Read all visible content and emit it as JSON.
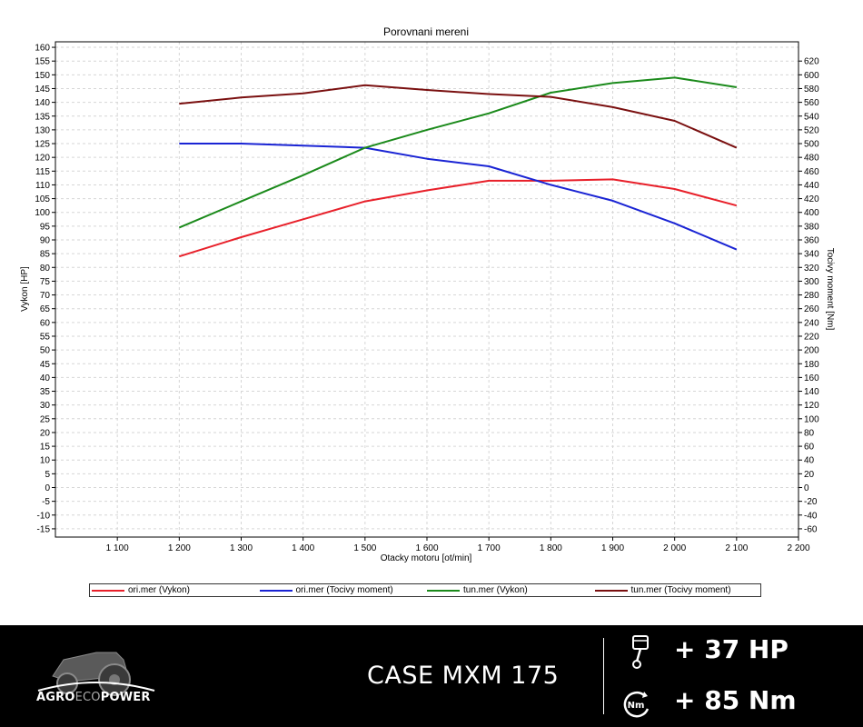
{
  "chart_data": {
    "type": "line",
    "title": "Porovnani mereni",
    "xlabel": "Otacky motoru [ot/min]",
    "ylabel_left": "Vykon [HP]",
    "ylabel_right": "Tocivy moment [Nm]",
    "xlim": [
      1000,
      2200
    ],
    "ylim_left": [
      -18,
      162
    ],
    "ylim_right": [
      -72,
      648
    ],
    "x_ticks": [
      1100,
      1200,
      1300,
      1400,
      1500,
      1600,
      1700,
      1800,
      1900,
      2000,
      2100,
      2200
    ],
    "x_tick_labels": [
      "1 100",
      "1 200",
      "1 300",
      "1 400",
      "1 500",
      "1 600",
      "1 700",
      "1 800",
      "1 900",
      "2 000",
      "2 100",
      "2 200"
    ],
    "y_ticks_left": [
      -15,
      -10,
      -5,
      0,
      5,
      10,
      15,
      20,
      25,
      30,
      35,
      40,
      45,
      50,
      55,
      60,
      65,
      70,
      75,
      80,
      85,
      90,
      95,
      100,
      105,
      110,
      115,
      120,
      125,
      130,
      135,
      140,
      145,
      150,
      155,
      160
    ],
    "y_ticks_right": [
      -60,
      -40,
      -20,
      0,
      20,
      40,
      60,
      80,
      100,
      120,
      140,
      160,
      180,
      200,
      220,
      240,
      260,
      280,
      300,
      320,
      340,
      360,
      380,
      400,
      420,
      440,
      460,
      480,
      500,
      520,
      540,
      560,
      580,
      600,
      620
    ],
    "grid": true,
    "legend_position": "bottom",
    "series": [
      {
        "name": "ori.mer  (Vykon)",
        "axis": "left",
        "color": "#e8202a",
        "x": [
          1200,
          1300,
          1400,
          1500,
          1600,
          1700,
          1800,
          1900,
          2000,
          2100
        ],
        "values": [
          84,
          91,
          97.5,
          104,
          108,
          111.5,
          111.5,
          112,
          108.5,
          102.5
        ]
      },
      {
        "name": "ori.mer  (Tocivy moment)",
        "axis": "right",
        "color": "#1a24d4",
        "x": [
          1200,
          1300,
          1400,
          1500,
          1600,
          1700,
          1800,
          1900,
          2000,
          2100
        ],
        "values": [
          500,
          500,
          497,
          494,
          478,
          467,
          440,
          417,
          384,
          346
        ]
      },
      {
        "name": "tun.mer  (Vykon)",
        "axis": "left",
        "color": "#1b8a1b",
        "x": [
          1200,
          1300,
          1400,
          1500,
          1600,
          1700,
          1800,
          1900,
          2000,
          2100
        ],
        "values": [
          94.5,
          104,
          113.5,
          123.5,
          130,
          136,
          143.5,
          147,
          149,
          145.5
        ]
      },
      {
        "name": "tun.mer  (Tocivy moment)",
        "axis": "right",
        "color": "#7a1010",
        "x": [
          1200,
          1300,
          1400,
          1500,
          1600,
          1700,
          1800,
          1900,
          2000,
          2100
        ],
        "values": [
          558,
          567,
          573,
          585,
          578,
          572,
          568,
          553,
          533,
          494
        ]
      }
    ]
  },
  "footer": {
    "brand_primary": "AGRO",
    "brand_eco": "ECO",
    "brand_secondary": "POWER",
    "model": "CASE MXM 175",
    "gain_power": "+ 37 HP",
    "gain_torque": "+ 85 Nm",
    "torque_icon_label": "Nm",
    "icons": {
      "power": "piston-icon",
      "torque": "torque-gauge-icon",
      "logo": "tractor-icon"
    }
  }
}
